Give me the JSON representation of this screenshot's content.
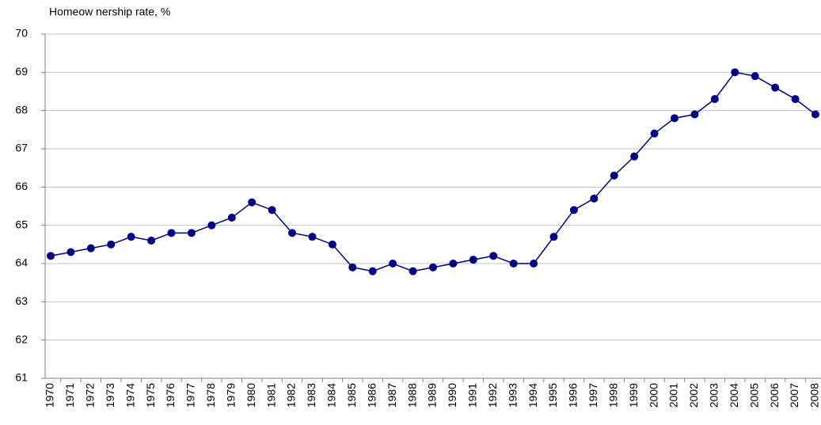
{
  "chart_data": {
    "type": "line",
    "title": "Homeow nership rate, %",
    "categories": [
      "1970",
      "1971",
      "1972",
      "1973",
      "1974",
      "1975",
      "1976",
      "1977",
      "1978",
      "1979",
      "1980",
      "1981",
      "1982",
      "1983",
      "1984",
      "1985",
      "1986",
      "1987",
      "1988",
      "1989",
      "1990",
      "1991",
      "1992",
      "1993",
      "1994",
      "1995",
      "1996",
      "1997",
      "1998",
      "1999",
      "2000",
      "2001",
      "2002",
      "2003",
      "2004",
      "2005",
      "2006",
      "2007",
      "2008"
    ],
    "series": [
      {
        "name": "Homeownership rate",
        "color": "#000080",
        "values": [
          64.2,
          64.3,
          64.4,
          64.5,
          64.7,
          64.6,
          64.8,
          64.8,
          65.0,
          65.2,
          65.6,
          65.4,
          64.8,
          64.7,
          64.5,
          63.9,
          63.8,
          64.0,
          63.8,
          63.9,
          64.0,
          64.1,
          64.2,
          64.0,
          64.0,
          64.7,
          65.4,
          65.7,
          66.3,
          66.8,
          67.4,
          67.8,
          67.9,
          68.3,
          69.0,
          68.9,
          68.6,
          68.3,
          67.9
        ]
      }
    ],
    "ylim": [
      61,
      70
    ],
    "yticks": [
      61,
      62,
      63,
      64,
      65,
      66,
      67,
      68,
      69,
      70
    ],
    "grid": true
  }
}
